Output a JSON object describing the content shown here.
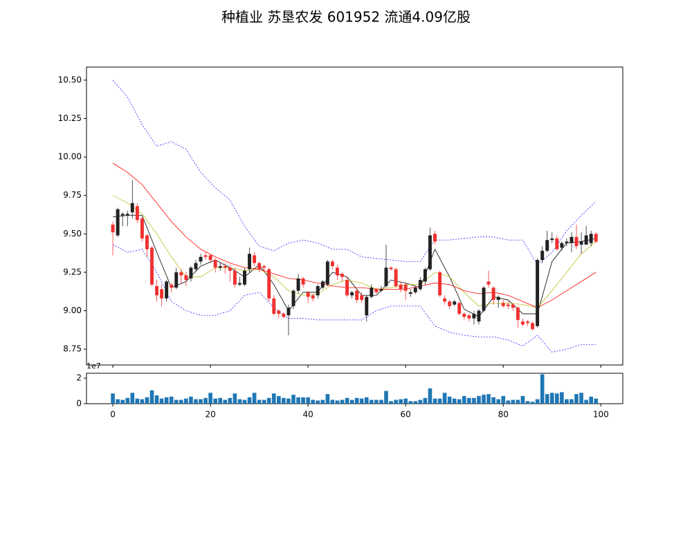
{
  "chart_data": [
    {
      "type": "candlestick",
      "title": "种植业 苏垦农发 601952 流通4.09亿股",
      "up_color": "#222222",
      "down_color": "#f03030",
      "x": [
        0,
        1,
        2,
        3,
        4,
        5,
        6,
        7,
        8,
        9,
        10,
        11,
        12,
        13,
        14,
        15,
        16,
        17,
        18,
        19,
        20,
        21,
        22,
        23,
        24,
        25,
        26,
        27,
        28,
        29,
        30,
        31,
        32,
        33,
        34,
        35,
        36,
        37,
        38,
        39,
        40,
        41,
        42,
        43,
        44,
        45,
        46,
        47,
        48,
        49,
        50,
        51,
        52,
        53,
        54,
        55,
        56,
        57,
        58,
        59,
        60,
        61,
        62,
        63,
        64,
        65,
        66,
        67,
        68,
        69,
        70,
        71,
        72,
        73,
        74,
        75,
        76,
        77,
        78,
        79,
        80,
        81,
        82,
        83,
        84,
        85,
        86,
        87,
        88,
        89,
        90,
        91,
        92,
        93,
        94,
        95,
        96,
        97,
        98,
        99
      ],
      "open": [
        9.56,
        9.49,
        9.62,
        9.62,
        9.64,
        9.68,
        9.6,
        9.49,
        9.41,
        9.16,
        9.14,
        9.08,
        9.17,
        9.15,
        9.25,
        9.23,
        9.21,
        9.27,
        9.32,
        9.36,
        9.36,
        9.33,
        9.28,
        9.29,
        9.28,
        9.26,
        9.17,
        9.17,
        9.27,
        9.36,
        9.31,
        9.29,
        9.27,
        9.08,
        9.0,
        8.98,
        8.97,
        9.03,
        9.13,
        9.21,
        9.12,
        9.1,
        9.1,
        9.15,
        9.17,
        9.32,
        9.28,
        9.24,
        9.2,
        9.1,
        9.13,
        9.1,
        8.97,
        9.09,
        9.14,
        9.13,
        9.16,
        9.28,
        9.27,
        9.17,
        9.17,
        9.11,
        9.12,
        9.14,
        9.19,
        9.27,
        9.5,
        9.25,
        9.08,
        9.06,
        9.04,
        9.05,
        8.98,
        8.97,
        8.95,
        8.93,
        9.0,
        9.19,
        9.15,
        9.07,
        9.05,
        9.04,
        9.04,
        9.02,
        8.93,
        8.93,
        8.92,
        8.9,
        9.33,
        9.39,
        9.46,
        9.47,
        9.41,
        9.44,
        9.44,
        9.48,
        9.43,
        9.43,
        9.44,
        9.5
      ],
      "high": [
        9.58,
        9.67,
        9.64,
        9.65,
        9.85,
        9.7,
        9.61,
        9.5,
        9.42,
        9.2,
        9.17,
        9.2,
        9.18,
        9.28,
        9.27,
        9.25,
        9.29,
        9.33,
        9.37,
        9.38,
        9.37,
        9.34,
        9.31,
        9.31,
        9.3,
        9.28,
        9.22,
        9.28,
        9.41,
        9.38,
        9.32,
        9.3,
        9.28,
        9.1,
        9.01,
        8.99,
        9.04,
        9.14,
        9.24,
        9.22,
        9.13,
        9.11,
        9.17,
        9.2,
        9.33,
        9.33,
        9.3,
        9.25,
        9.22,
        9.13,
        9.14,
        9.12,
        9.1,
        9.17,
        9.15,
        9.16,
        9.43,
        9.29,
        9.28,
        9.19,
        9.18,
        9.14,
        9.16,
        9.22,
        9.28,
        9.54,
        9.52,
        9.26,
        9.1,
        9.07,
        9.07,
        9.06,
        8.99,
        8.98,
        9.0,
        9.01,
        9.16,
        9.26,
        9.16,
        9.1,
        9.07,
        9.06,
        9.05,
        9.03,
        8.95,
        8.94,
        8.93,
        9.34,
        9.42,
        9.52,
        9.51,
        9.49,
        9.45,
        9.47,
        9.51,
        9.56,
        9.51,
        9.55,
        9.52,
        9.51
      ],
      "low": [
        9.36,
        9.48,
        9.55,
        9.55,
        9.6,
        9.57,
        9.45,
        9.35,
        9.16,
        9.06,
        9.03,
        9.06,
        9.12,
        9.14,
        9.18,
        9.16,
        9.19,
        9.26,
        9.3,
        9.33,
        9.31,
        9.25,
        9.26,
        9.24,
        9.19,
        9.15,
        9.16,
        9.16,
        9.25,
        9.29,
        9.25,
        9.25,
        9.06,
        8.97,
        8.95,
        8.95,
        8.84,
        9.01,
        9.11,
        9.15,
        9.05,
        9.06,
        9.08,
        9.14,
        9.16,
        9.27,
        9.2,
        9.19,
        9.09,
        9.08,
        9.05,
        9.05,
        8.93,
        9.08,
        9.11,
        9.12,
        9.15,
        9.26,
        9.15,
        9.12,
        9.07,
        9.09,
        9.11,
        9.13,
        9.17,
        9.26,
        9.43,
        9.09,
        9.04,
        9.01,
        9.03,
        8.97,
        8.94,
        8.93,
        8.91,
        8.91,
        8.99,
        9.15,
        9.04,
        9.02,
        9.02,
        9.01,
        9.0,
        8.89,
        8.9,
        8.9,
        8.87,
        8.89,
        9.31,
        9.38,
        9.44,
        9.39,
        9.39,
        9.42,
        9.38,
        9.4,
        9.37,
        9.43,
        9.42,
        9.44
      ],
      "close": [
        9.51,
        9.66,
        9.63,
        9.63,
        9.7,
        9.59,
        9.47,
        9.4,
        9.17,
        9.1,
        9.08,
        9.19,
        9.15,
        9.25,
        9.23,
        9.2,
        9.28,
        9.31,
        9.35,
        9.35,
        9.33,
        9.28,
        9.29,
        9.28,
        9.26,
        9.17,
        9.18,
        9.26,
        9.37,
        9.31,
        9.27,
        9.28,
        9.08,
        8.98,
        8.98,
        8.96,
        9.02,
        9.13,
        9.21,
        9.17,
        9.09,
        9.08,
        9.16,
        9.19,
        9.32,
        9.29,
        9.23,
        9.22,
        9.1,
        9.12,
        9.07,
        9.07,
        9.09,
        9.15,
        9.12,
        9.14,
        9.28,
        9.27,
        9.16,
        9.14,
        9.13,
        9.12,
        9.15,
        9.2,
        9.27,
        9.49,
        9.45,
        9.1,
        9.06,
        9.03,
        9.06,
        8.98,
        8.96,
        8.95,
        8.98,
        9.0,
        9.15,
        9.17,
        9.07,
        9.09,
        9.03,
        9.03,
        9.02,
        8.94,
        8.91,
        8.92,
        8.88,
        9.33,
        9.39,
        9.46,
        9.47,
        9.4,
        9.44,
        9.45,
        9.48,
        9.42,
        9.45,
        9.49,
        9.5,
        9.45
      ],
      "lines": [
        {
          "color": "#000000",
          "dashed": false,
          "x": [
            0,
            3,
            6,
            9,
            12,
            15,
            18,
            21,
            24,
            27,
            30,
            33,
            36,
            39,
            42,
            45,
            48,
            51,
            54,
            57,
            60,
            63,
            66,
            69,
            72,
            75,
            78,
            81,
            84,
            87,
            90,
            93,
            96,
            99
          ],
          "values": [
            9.61,
            9.62,
            9.62,
            9.38,
            9.15,
            9.19,
            9.29,
            9.33,
            9.28,
            9.22,
            9.3,
            9.17,
            9.0,
            9.12,
            9.12,
            9.25,
            9.22,
            9.1,
            9.1,
            9.2,
            9.18,
            9.15,
            9.4,
            9.22,
            9.01,
            8.96,
            9.09,
            9.07,
            8.98,
            8.98,
            9.32,
            9.44,
            9.45,
            9.47
          ]
        },
        {
          "color": "#bcbd22",
          "dashed": false,
          "x": [
            0,
            3,
            6,
            9,
            12,
            15,
            18,
            21,
            24,
            27,
            30,
            33,
            36,
            39,
            42,
            45,
            48,
            51,
            54,
            57,
            60,
            63,
            66,
            69,
            72,
            75,
            78,
            81,
            84,
            87,
            90,
            93,
            96,
            99
          ],
          "values": [
            9.75,
            9.7,
            9.63,
            9.5,
            9.35,
            9.22,
            9.22,
            9.28,
            9.28,
            9.26,
            9.27,
            9.22,
            9.13,
            9.1,
            9.11,
            9.17,
            9.2,
            9.18,
            9.14,
            9.15,
            9.17,
            9.17,
            9.25,
            9.22,
            9.12,
            9.03,
            9.05,
            9.05,
            9.04,
            9.02,
            9.13,
            9.25,
            9.37,
            9.45
          ]
        },
        {
          "color": "#ff0000",
          "dashed": false,
          "x": [
            0,
            3,
            6,
            9,
            12,
            15,
            18,
            21,
            24,
            27,
            30,
            33,
            36,
            39,
            42,
            45,
            48,
            51,
            54,
            57,
            60,
            63,
            66,
            69,
            72,
            75,
            78,
            81,
            84,
            87,
            90,
            93,
            96,
            99
          ],
          "values": [
            9.96,
            9.9,
            9.82,
            9.7,
            9.58,
            9.48,
            9.4,
            9.35,
            9.31,
            9.28,
            9.27,
            9.24,
            9.21,
            9.2,
            9.18,
            9.16,
            9.15,
            9.15,
            9.14,
            9.14,
            9.14,
            9.16,
            9.18,
            9.17,
            9.13,
            9.11,
            9.12,
            9.1,
            9.06,
            9.02,
            9.07,
            9.13,
            9.19,
            9.25
          ]
        },
        {
          "color": "#0000ff",
          "dashed": true,
          "x": [
            0,
            3,
            6,
            9,
            12,
            15,
            18,
            21,
            24,
            27,
            30,
            33,
            36,
            39,
            42,
            45,
            48,
            51,
            54,
            57,
            60,
            63,
            66,
            69,
            72,
            75,
            78,
            81,
            84,
            87,
            90,
            93,
            96,
            99
          ],
          "values": [
            10.5,
            10.39,
            10.21,
            10.07,
            10.1,
            10.05,
            9.9,
            9.8,
            9.72,
            9.55,
            9.42,
            9.39,
            9.44,
            9.46,
            9.44,
            9.4,
            9.4,
            9.35,
            9.34,
            9.33,
            9.32,
            9.32,
            9.46,
            9.46,
            9.47,
            9.48,
            9.48,
            9.46,
            9.46,
            9.3,
            9.38,
            9.52,
            9.62,
            9.71
          ]
        },
        {
          "color": "#0000ff",
          "dashed": true,
          "x": [
            0,
            3,
            6,
            9,
            12,
            15,
            18,
            21,
            24,
            27,
            30,
            33,
            36,
            39,
            42,
            45,
            48,
            51,
            54,
            57,
            60,
            63,
            66,
            69,
            72,
            75,
            78,
            81,
            84,
            87,
            90,
            93,
            96,
            99
          ],
          "values": [
            9.43,
            9.38,
            9.4,
            9.25,
            9.06,
            9.0,
            8.97,
            8.97,
            9.0,
            9.1,
            9.12,
            9.02,
            8.95,
            8.95,
            8.94,
            8.94,
            8.94,
            8.94,
            9.0,
            9.03,
            9.03,
            9.03,
            8.9,
            8.86,
            8.84,
            8.83,
            8.83,
            8.81,
            8.77,
            8.84,
            8.73,
            8.75,
            8.78,
            8.78
          ]
        }
      ],
      "xlim": [
        -5.4,
        104.5
      ],
      "xticks": [
        0,
        20,
        40,
        60,
        80,
        100
      ],
      "show_xtick_labels": false,
      "ylim": [
        8.647,
        10.585
      ],
      "yticks": [
        8.75,
        {
          "value": 9.0,
          "label": "9.00"
        },
        9.25,
        {
          "value": 9.5,
          "label": "9.50"
        },
        9.75,
        {
          "value": 10.0,
          "label": "10.00"
        },
        10.25,
        {
          "value": 10.5,
          "label": "10.50"
        }
      ]
    },
    {
      "type": "bar",
      "color": "#1f77b4",
      "y_offset_label": "1e7",
      "x": [
        0,
        1,
        2,
        3,
        4,
        5,
        6,
        7,
        8,
        9,
        10,
        11,
        12,
        13,
        14,
        15,
        16,
        17,
        18,
        19,
        20,
        21,
        22,
        23,
        24,
        25,
        26,
        27,
        28,
        29,
        30,
        31,
        32,
        33,
        34,
        35,
        36,
        37,
        38,
        39,
        40,
        41,
        42,
        43,
        44,
        45,
        46,
        47,
        48,
        49,
        50,
        51,
        52,
        53,
        54,
        55,
        56,
        57,
        58,
        59,
        60,
        61,
        62,
        63,
        64,
        65,
        66,
        67,
        68,
        69,
        70,
        71,
        72,
        73,
        74,
        75,
        76,
        77,
        78,
        79,
        80,
        81,
        82,
        83,
        84,
        85,
        86,
        87,
        88,
        89,
        90,
        91,
        92,
        93,
        94,
        95,
        96,
        97,
        98,
        99
      ],
      "values": [
        8000000,
        3500000,
        3000000,
        4500000,
        8500000,
        4000000,
        3500000,
        5000000,
        10500000,
        6500000,
        4000000,
        5000000,
        5500000,
        3000000,
        3000000,
        4000000,
        5500000,
        3500000,
        3500000,
        4500000,
        8500000,
        4000000,
        4500000,
        3000000,
        4500000,
        8000000,
        3500000,
        3000000,
        5000000,
        8500000,
        3000000,
        3000000,
        4500000,
        8000000,
        6000000,
        4500000,
        4000000,
        7000000,
        5000000,
        5000000,
        5000000,
        3000000,
        2500000,
        3000000,
        7500000,
        3000000,
        2500000,
        3000000,
        4500000,
        3000000,
        4500000,
        4000000,
        5000000,
        3000000,
        3000000,
        3000000,
        10000000,
        2000000,
        3000000,
        3500000,
        4000000,
        2000000,
        2000000,
        3000000,
        4500000,
        12000000,
        4000000,
        4000000,
        8500000,
        5500000,
        4000000,
        3500000,
        6000000,
        4500000,
        4500000,
        6000000,
        7000000,
        7500000,
        5000000,
        3500000,
        6000000,
        2500000,
        3000000,
        3000000,
        6000000,
        2000000,
        1500000,
        3500000,
        23000000,
        7500000,
        8500000,
        8000000,
        9000000,
        3500000,
        3500000,
        7500000,
        8500000,
        3000000,
        5500000,
        4000000
      ],
      "xlim": [
        -5.4,
        104.5
      ],
      "xticks": [
        0,
        20,
        40,
        60,
        80,
        100
      ],
      "show_xtick_labels": true,
      "ylim": [
        0,
        23800000
      ],
      "yticks": [
        0,
        {
          "value": 20000000,
          "label": "2"
        }
      ]
    }
  ]
}
